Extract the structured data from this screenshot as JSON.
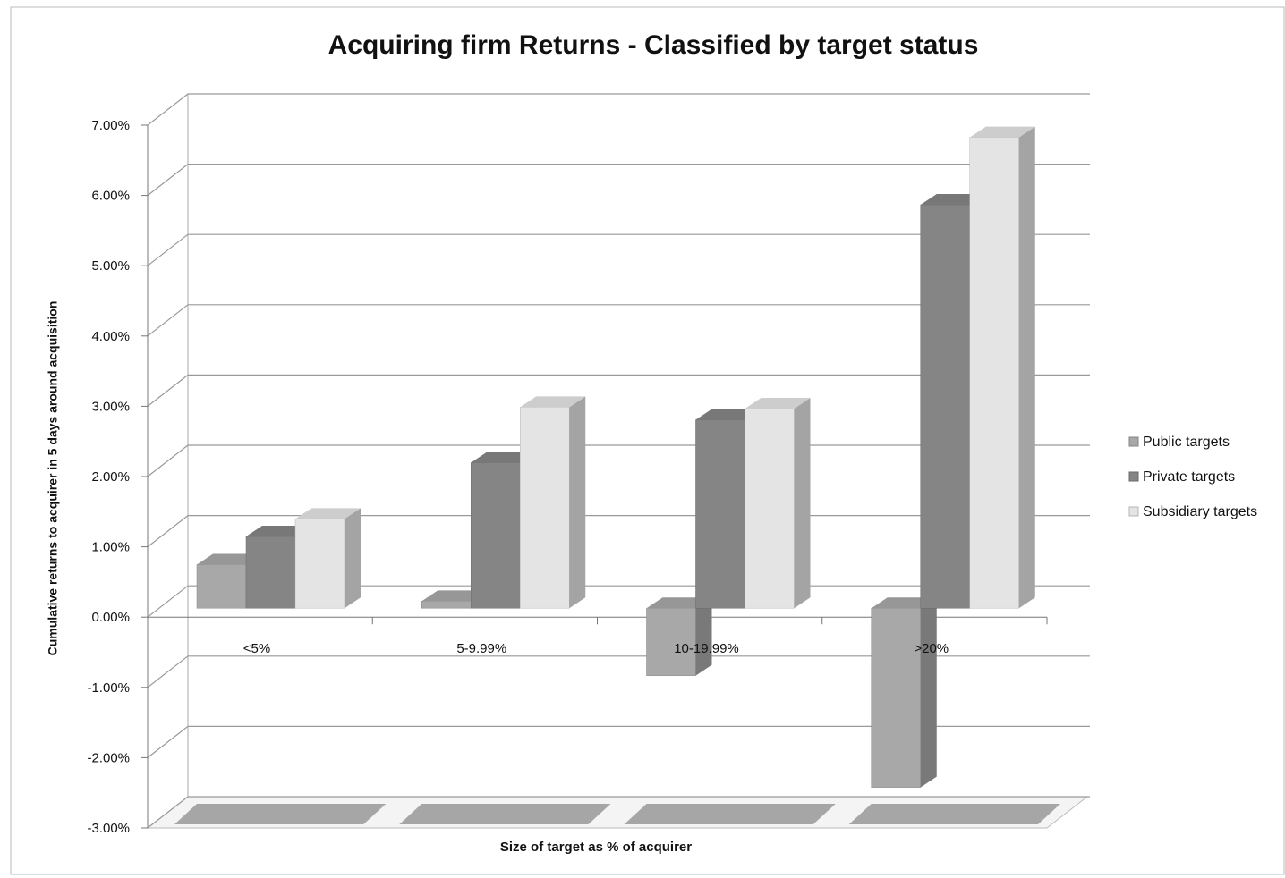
{
  "chart_data": {
    "type": "bar3d",
    "title": "Acquiring firm Returns - Classified by target status",
    "y_label": "Cumulative returns to acquirer in 5 days around acquisition",
    "x_label": "Size of target as % of acquirer",
    "categories": [
      "<5%",
      "5-9.99%",
      "10-19.99%",
      ">20%"
    ],
    "series": [
      {
        "name": "Public targets",
        "color": "#a8a8a8",
        "values": [
          0.62,
          0.1,
          -0.96,
          -2.55
        ]
      },
      {
        "name": "Private targets",
        "color": "#858585",
        "values": [
          1.02,
          2.07,
          2.68,
          5.74
        ]
      },
      {
        "name": "Subsidiary targets",
        "color": "#e4e4e4",
        "values": [
          1.27,
          2.86,
          2.84,
          6.7
        ]
      }
    ],
    "ylim": [
      -3,
      7
    ],
    "yticks": [
      {
        "value": -3,
        "label": "-3.00%"
      },
      {
        "value": -2,
        "label": "-2.00%"
      },
      {
        "value": -1,
        "label": "-1.00%"
      },
      {
        "value": 0,
        "label": "0.00%"
      },
      {
        "value": 1,
        "label": "1.00%"
      },
      {
        "value": 2,
        "label": "2.00%"
      },
      {
        "value": 3,
        "label": "3.00%"
      },
      {
        "value": 4,
        "label": "4.00%"
      },
      {
        "value": 5,
        "label": "5.00%"
      },
      {
        "value": 6,
        "label": "6.00%"
      },
      {
        "value": 7,
        "label": "7.00%"
      }
    ],
    "grid": true,
    "legend": "right"
  }
}
